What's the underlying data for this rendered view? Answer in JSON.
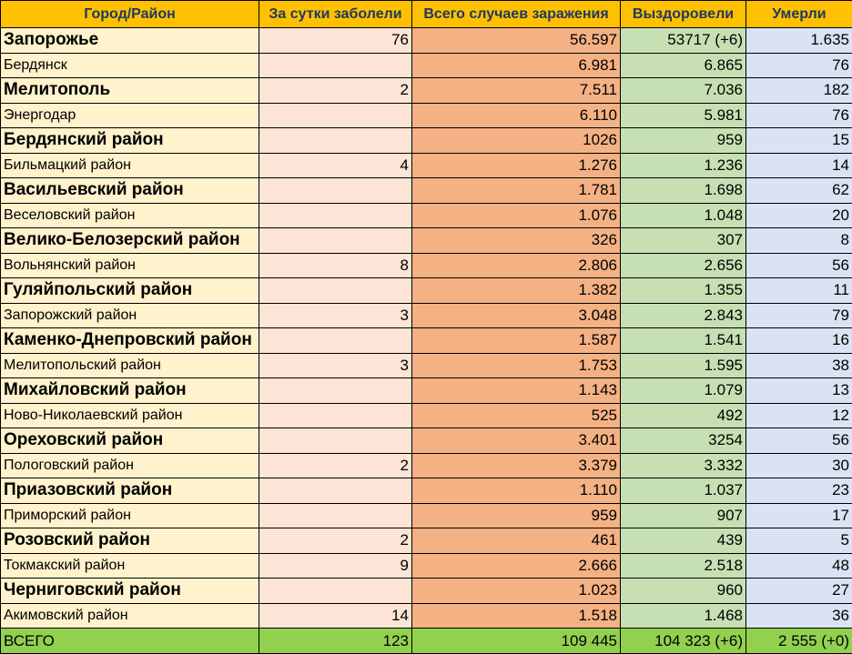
{
  "headers": {
    "city": "Город/Район",
    "daily": "За сутки заболели",
    "total": "Всего случаев заражения",
    "recovered": "Выздоровели",
    "died": "Умерли"
  },
  "rows": [
    {
      "name": "Запорожье",
      "daily": "76",
      "total": "56.597",
      "recovered": "53717 (+6)",
      "died": "1.635"
    },
    {
      "name": "Бердянск",
      "daily": "",
      "total": "6.981",
      "recovered": "6.865",
      "died": "76"
    },
    {
      "name": "Мелитополь",
      "daily": "2",
      "total": "7.511",
      "recovered": "7.036",
      "died": "182"
    },
    {
      "name": "Энергодар",
      "daily": "",
      "total": "6.110",
      "recovered": "5.981",
      "died": "76"
    },
    {
      "name": "Бердянский район",
      "daily": "",
      "total": "1026",
      "recovered": "959",
      "died": "15"
    },
    {
      "name": "Бильмацкий район",
      "daily": "4",
      "total": "1.276",
      "recovered": "1.236",
      "died": "14"
    },
    {
      "name": "Васильевский район",
      "daily": "",
      "total": "1.781",
      "recovered": "1.698",
      "died": "62"
    },
    {
      "name": "Веселовский район",
      "daily": "",
      "total": "1.076",
      "recovered": "1.048",
      "died": "20"
    },
    {
      "name": "Велико-Белозерский район",
      "daily": "",
      "total": "326",
      "recovered": "307",
      "died": "8"
    },
    {
      "name": "Вольнянский район",
      "daily": "8",
      "total": "2.806",
      "recovered": "2.656",
      "died": "56"
    },
    {
      "name": "Гуляйпольский район",
      "daily": "",
      "total": "1.382",
      "recovered": "1.355",
      "died": "11"
    },
    {
      "name": "Запорожский район",
      "daily": "3",
      "total": "3.048",
      "recovered": "2.843",
      "died": "79"
    },
    {
      "name": "Каменко-Днепровский район",
      "daily": "",
      "total": "1.587",
      "recovered": "1.541",
      "died": "16"
    },
    {
      "name": "Мелитопольский район",
      "daily": "3",
      "total": "1.753",
      "recovered": "1.595",
      "died": "38"
    },
    {
      "name": "Михайловский район",
      "daily": "",
      "total": "1.143",
      "recovered": "1.079",
      "died": "13"
    },
    {
      "name": "Ново-Николаевский район",
      "daily": "",
      "total": "525",
      "recovered": "492",
      "died": "12"
    },
    {
      "name": "Ореховский район",
      "daily": "",
      "total": "3.401",
      "recovered": "3254",
      "died": "56"
    },
    {
      "name": "Пологовский район",
      "daily": "2",
      "total": "3.379",
      "recovered": "3.332",
      "died": "30"
    },
    {
      "name": "Приазовский район",
      "daily": "",
      "total": "1.110",
      "recovered": "1.037",
      "died": "23"
    },
    {
      "name": "Приморский район",
      "daily": "",
      "total": "959",
      "recovered": "907",
      "died": "17"
    },
    {
      "name": "Розовский район",
      "daily": "2",
      "total": "461",
      "recovered": "439",
      "died": "5"
    },
    {
      "name": "Токмакский район",
      "daily": "9",
      "total": "2.666",
      "recovered": "2.518",
      "died": "48"
    },
    {
      "name": "Черниговский район",
      "daily": "",
      "total": "1.023",
      "recovered": "960",
      "died": "27"
    },
    {
      "name": "Акимовский район",
      "daily": "14",
      "total": "1.518",
      "recovered": "1.468",
      "died": "36"
    }
  ],
  "footer": {
    "name": "ВСЕГО",
    "daily": "123",
    "total": "109 445",
    "recovered": "104 323 (+6)",
    "died": "2 555 (+0)"
  },
  "colors": {
    "header": "#ffc000",
    "header_text": "#1f3864",
    "name_column": "#fff2cc",
    "daily_column": "#fce4d6",
    "total_column": "#f4b183",
    "recovered_column": "#c6e0b4",
    "died_column": "#dae3f3",
    "footer": "#92d050"
  }
}
